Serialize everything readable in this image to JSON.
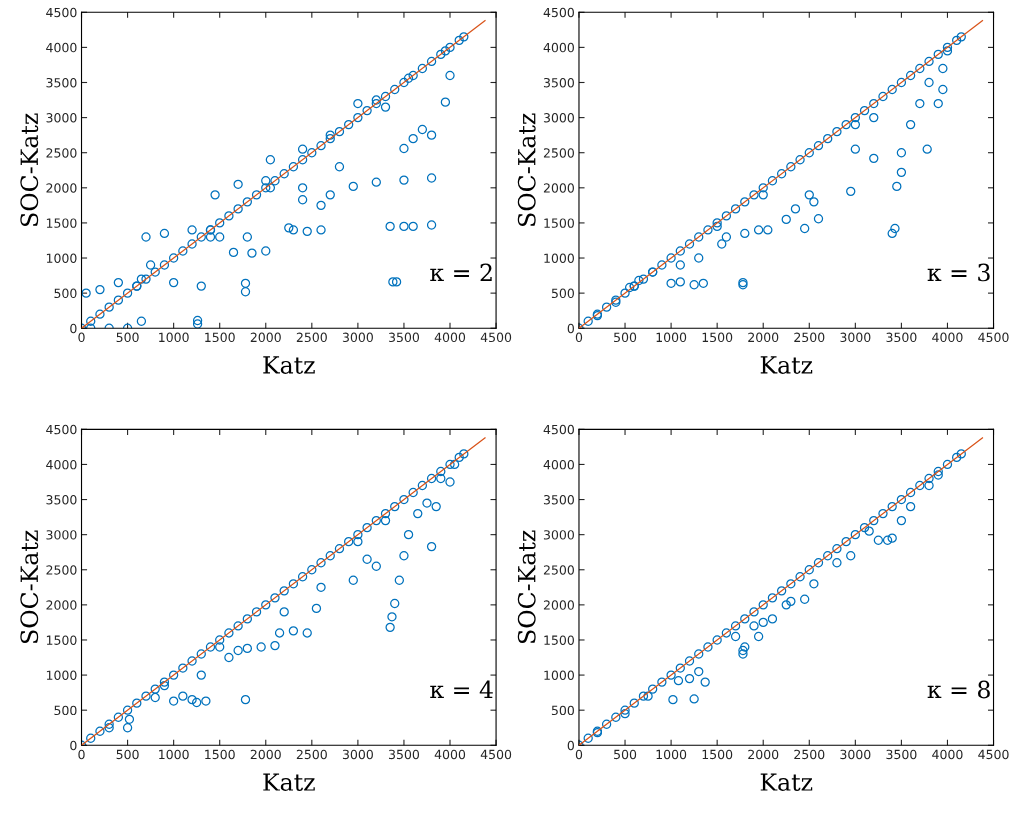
{
  "chart_data": [
    {
      "type": "scatter",
      "xlabel": "Katz",
      "ylabel": "SOC-Katz",
      "annotations": [
        "κ = 2"
      ],
      "xlim": [
        0,
        4500
      ],
      "ylim": [
        0,
        4500
      ],
      "xticks": [
        0,
        500,
        1000,
        1500,
        2000,
        2500,
        3000,
        3500,
        4000,
        4500
      ],
      "yticks": [
        0,
        500,
        1000,
        1500,
        2000,
        2500,
        3000,
        3500,
        4000,
        4500
      ],
      "grid": false,
      "series": [
        {
          "marker": "circle",
          "color": "#0072bd",
          "x": [
            0,
            100,
            200,
            300,
            400,
            500,
            600,
            700,
            800,
            900,
            1000,
            1100,
            1200,
            1300,
            1400,
            1500,
            1600,
            1700,
            1800,
            1900,
            2000,
            2100,
            2200,
            2300,
            2400,
            2500,
            2600,
            2700,
            2800,
            2900,
            3000,
            3100,
            3200,
            3300,
            3400,
            3500,
            3600,
            3700,
            3800,
            3900,
            4000,
            4100,
            4150,
            50,
            200,
            400,
            600,
            100,
            300,
            500,
            650,
            650,
            700,
            900,
            1200,
            1400,
            750,
            1000,
            1300,
            1400,
            1450,
            1700,
            2000,
            1500,
            1800,
            2050,
            2050,
            2400,
            2400,
            2700,
            2800,
            3000,
            3200,
            3300,
            1260,
            1260,
            1780,
            1780,
            3380,
            3420,
            3350,
            3500,
            3600,
            3800,
            2950,
            3200,
            3500,
            3800,
            3500,
            3600,
            3800,
            3950,
            3700,
            2450,
            2600,
            2300,
            1850,
            1650,
            2000,
            2250,
            2400,
            2600,
            2700,
            3550,
            4000,
            3950
          ],
          "values": [
            0,
            100,
            200,
            300,
            400,
            500,
            600,
            700,
            800,
            900,
            1000,
            1100,
            1200,
            1300,
            1400,
            1500,
            1600,
            1700,
            1800,
            1900,
            2000,
            2100,
            2200,
            2300,
            2400,
            2500,
            2600,
            2700,
            2800,
            2900,
            3000,
            3100,
            3200,
            3300,
            3400,
            3500,
            3600,
            3700,
            3800,
            3900,
            4000,
            4100,
            4150,
            500,
            550,
            650,
            600,
            0,
            0,
            0,
            100,
            700,
            1300,
            1350,
            1400,
            1400,
            900,
            650,
            600,
            1300,
            1900,
            2050,
            2100,
            1300,
            1300,
            2000,
            2400,
            2550,
            2000,
            2750,
            2300,
            3200,
            3250,
            3150,
            60,
            110,
            520,
            640,
            660,
            660,
            1450,
            1450,
            1450,
            1470,
            2020,
            2080,
            2110,
            2140,
            2560,
            2700,
            2750,
            3220,
            2830,
            1380,
            1400,
            1400,
            1070,
            1080,
            1100,
            1430,
            1830,
            1750,
            1900,
            3560,
            3600,
            3950
          ]
        },
        {
          "type": "line",
          "color": "#d95319",
          "x": [
            0,
            4380
          ],
          "values": [
            0,
            4380
          ]
        }
      ]
    },
    {
      "type": "scatter",
      "xlabel": "Katz",
      "ylabel": "SOC-Katz",
      "annotations": [
        "κ = 3"
      ],
      "xlim": [
        0,
        4500
      ],
      "ylim": [
        0,
        4500
      ],
      "xticks": [
        0,
        500,
        1000,
        1500,
        2000,
        2500,
        3000,
        3500,
        4000,
        4500
      ],
      "yticks": [
        0,
        500,
        1000,
        1500,
        2000,
        2500,
        3000,
        3500,
        4000,
        4500
      ],
      "grid": false,
      "series": [
        {
          "marker": "circle",
          "color": "#0072bd",
          "x": [
            0,
            100,
            200,
            300,
            400,
            500,
            600,
            700,
            800,
            900,
            1000,
            1100,
            1200,
            1300,
            1400,
            1500,
            1600,
            1700,
            1800,
            1900,
            2000,
            2100,
            2200,
            2300,
            2400,
            2500,
            2600,
            2700,
            2800,
            2900,
            3000,
            3100,
            3200,
            3300,
            3400,
            3500,
            3600,
            3700,
            3800,
            3900,
            4000,
            4100,
            4150,
            550,
            600,
            650,
            1000,
            1100,
            1250,
            1350,
            1780,
            1780,
            1100,
            1300,
            1550,
            1600,
            1800,
            1950,
            2050,
            2250,
            2450,
            2600,
            2550,
            2350,
            2500,
            2950,
            3200,
            3000,
            3400,
            3430,
            3450,
            3500,
            3500,
            3600,
            3700,
            3800,
            3780,
            3900,
            3950,
            3950,
            4000,
            3000,
            3200,
            2000,
            1500,
            800,
            200,
            400
          ],
          "values": [
            0,
            100,
            200,
            300,
            400,
            500,
            600,
            700,
            800,
            900,
            1000,
            1100,
            1200,
            1300,
            1400,
            1500,
            1600,
            1700,
            1800,
            1900,
            2000,
            2100,
            2200,
            2300,
            2400,
            2500,
            2600,
            2700,
            2800,
            2900,
            3000,
            3100,
            3200,
            3300,
            3400,
            3500,
            3600,
            3700,
            3800,
            3900,
            4000,
            4100,
            4150,
            580,
            600,
            680,
            640,
            660,
            620,
            640,
            650,
            620,
            900,
            1000,
            1200,
            1300,
            1350,
            1400,
            1400,
            1550,
            1420,
            1560,
            1800,
            1700,
            1900,
            1950,
            2420,
            2550,
            1350,
            1420,
            2020,
            2220,
            2500,
            2900,
            3200,
            3500,
            2550,
            3200,
            3700,
            3400,
            3950,
            2900,
            3000,
            1900,
            1450,
            800,
            180,
            370
          ]
        },
        {
          "type": "line",
          "color": "#d95319",
          "x": [
            0,
            4380
          ],
          "values": [
            0,
            4380
          ]
        }
      ]
    },
    {
      "type": "scatter",
      "xlabel": "Katz",
      "ylabel": "SOC-Katz",
      "annotations": [
        "κ = 4"
      ],
      "xlim": [
        0,
        4500
      ],
      "ylim": [
        0,
        4500
      ],
      "xticks": [
        0,
        500,
        1000,
        1500,
        2000,
        2500,
        3000,
        3500,
        4000,
        4500
      ],
      "yticks": [
        0,
        500,
        1000,
        1500,
        2000,
        2500,
        3000,
        3500,
        4000,
        4500
      ],
      "grid": false,
      "series": [
        {
          "marker": "circle",
          "color": "#0072bd",
          "x": [
            0,
            100,
            200,
            300,
            400,
            500,
            600,
            700,
            800,
            900,
            1000,
            1100,
            1200,
            1300,
            1400,
            1500,
            1600,
            1700,
            1800,
            1900,
            2000,
            2100,
            2200,
            2300,
            2400,
            2500,
            2600,
            2700,
            2800,
            2900,
            3000,
            3100,
            3200,
            3300,
            3400,
            3500,
            3600,
            3700,
            3800,
            3900,
            4000,
            4100,
            4150,
            500,
            520,
            800,
            1000,
            1100,
            1200,
            1250,
            1350,
            1780,
            1300,
            1600,
            1700,
            1800,
            1950,
            2100,
            2150,
            2300,
            2450,
            2200,
            2550,
            2950,
            2600,
            3100,
            3200,
            3350,
            3370,
            3400,
            3450,
            3500,
            3550,
            3650,
            3750,
            3800,
            3850,
            3900,
            4000,
            4050,
            3000,
            3300,
            1500,
            900,
            300
          ],
          "values": [
            0,
            100,
            200,
            300,
            400,
            500,
            600,
            700,
            800,
            900,
            1000,
            1100,
            1200,
            1300,
            1400,
            1500,
            1600,
            1700,
            1800,
            1900,
            2000,
            2100,
            2200,
            2300,
            2400,
            2500,
            2600,
            2700,
            2800,
            2900,
            3000,
            3100,
            3200,
            3300,
            3400,
            3500,
            3600,
            3700,
            3800,
            3900,
            4000,
            4100,
            4150,
            250,
            370,
            680,
            630,
            700,
            650,
            610,
            630,
            650,
            1000,
            1250,
            1350,
            1380,
            1400,
            1420,
            1600,
            1630,
            1600,
            1900,
            1950,
            2350,
            2250,
            2650,
            2550,
            1680,
            1830,
            2020,
            2350,
            2700,
            3000,
            3300,
            3450,
            2830,
            3400,
            3800,
            3750,
            4000,
            2900,
            3200,
            1400,
            850,
            250
          ]
        },
        {
          "type": "line",
          "color": "#d95319",
          "x": [
            0,
            4380
          ],
          "values": [
            0,
            4380
          ]
        }
      ]
    },
    {
      "type": "scatter",
      "xlabel": "Katz",
      "ylabel": "SOC-Katz",
      "annotations": [
        "κ = 8"
      ],
      "xlim": [
        0,
        4500
      ],
      "ylim": [
        0,
        4500
      ],
      "xticks": [
        0,
        500,
        1000,
        1500,
        2000,
        2500,
        3000,
        3500,
        4000,
        4500
      ],
      "yticks": [
        0,
        500,
        1000,
        1500,
        2000,
        2500,
        3000,
        3500,
        4000,
        4500
      ],
      "grid": false,
      "series": [
        {
          "marker": "circle",
          "color": "#0072bd",
          "x": [
            0,
            100,
            200,
            300,
            400,
            500,
            600,
            700,
            800,
            900,
            1000,
            1100,
            1200,
            1300,
            1400,
            1500,
            1600,
            1700,
            1800,
            1900,
            2000,
            2100,
            2200,
            2300,
            2400,
            2500,
            2600,
            2700,
            2800,
            2900,
            3000,
            3100,
            3200,
            3300,
            3400,
            3500,
            3600,
            3700,
            3800,
            3900,
            4000,
            4100,
            4150,
            1020,
            1250,
            1370,
            1200,
            1080,
            1300,
            1700,
            1780,
            1780,
            1800,
            1900,
            1950,
            2100,
            2000,
            2250,
            2450,
            2300,
            2550,
            2950,
            2800,
            3350,
            3400,
            3500,
            3600,
            3800,
            3900,
            3150,
            3250,
            500,
            750,
            200
          ],
          "values": [
            0,
            100,
            200,
            300,
            400,
            500,
            600,
            700,
            800,
            900,
            1000,
            1100,
            1200,
            1300,
            1400,
            1500,
            1600,
            1700,
            1800,
            1900,
            2000,
            2100,
            2200,
            2300,
            2400,
            2500,
            2600,
            2700,
            2800,
            2900,
            3000,
            3100,
            3200,
            3300,
            3400,
            3500,
            3600,
            3700,
            3800,
            3900,
            4000,
            4100,
            4150,
            650,
            660,
            900,
            950,
            920,
            1050,
            1550,
            1300,
            1350,
            1400,
            1700,
            1550,
            1800,
            1750,
            2000,
            2080,
            2050,
            2300,
            2700,
            2600,
            2920,
            2950,
            3200,
            3400,
            3700,
            3850,
            3050,
            2920,
            450,
            700,
            180
          ]
        },
        {
          "type": "line",
          "color": "#d95319",
          "x": [
            0,
            4380
          ],
          "values": [
            0,
            4380
          ]
        }
      ]
    }
  ]
}
